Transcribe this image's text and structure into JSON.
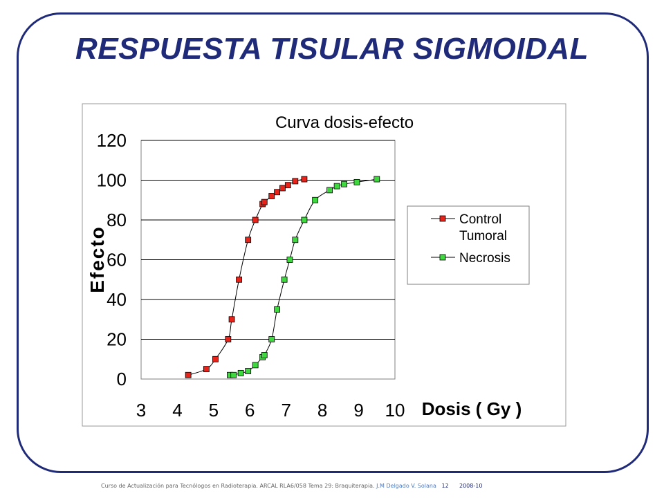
{
  "slide": {
    "title": "RESPUESTA TISULAR SIGMOIDAL",
    "footer": {
      "course": "Curso de Actualización para Tecnólogos en Radioterapia. ARCAL RLA6/058 Tema 29: Braquiterapia.",
      "author": "J.M Delgado V. Solana",
      "page": "12",
      "year": "2008-10"
    }
  },
  "chart_data": {
    "type": "line",
    "title": "Curva dosis-efecto",
    "xlabel": "Dosis ( Gy )",
    "ylabel": "Efecto",
    "xlim": [
      3,
      10
    ],
    "ylim": [
      0,
      120
    ],
    "xticks": [
      "3",
      "4",
      "5",
      "6",
      "7",
      "8",
      "9",
      "10"
    ],
    "yticks": [
      "0",
      "20",
      "40",
      "60",
      "80",
      "100",
      "120"
    ],
    "grid": "horizontal",
    "legend_position": "right",
    "series": [
      {
        "name": "Control Tumoral",
        "color": "#e8231a",
        "x": [
          4.3,
          4.8,
          5.05,
          5.4,
          5.5,
          5.7,
          5.95,
          6.15,
          6.35,
          6.4,
          6.6,
          6.75,
          6.9,
          7.05,
          7.25,
          7.5
        ],
        "y": [
          2,
          5,
          10,
          20,
          30,
          50,
          70,
          80,
          88,
          89,
          92,
          94,
          96,
          97.5,
          99.5,
          100.5
        ]
      },
      {
        "name": "Necrosis",
        "color": "#3fd93f",
        "x": [
          5.45,
          5.55,
          5.75,
          5.95,
          6.15,
          6.35,
          6.4,
          6.6,
          6.75,
          6.95,
          7.1,
          7.25,
          7.5,
          7.8,
          8.2,
          8.4,
          8.6,
          8.95,
          9.5
        ],
        "y": [
          2,
          2,
          3,
          4,
          7,
          11,
          12,
          20,
          35,
          50,
          60,
          70,
          80,
          90,
          95,
          97,
          98,
          99,
          100.5
        ]
      }
    ]
  }
}
